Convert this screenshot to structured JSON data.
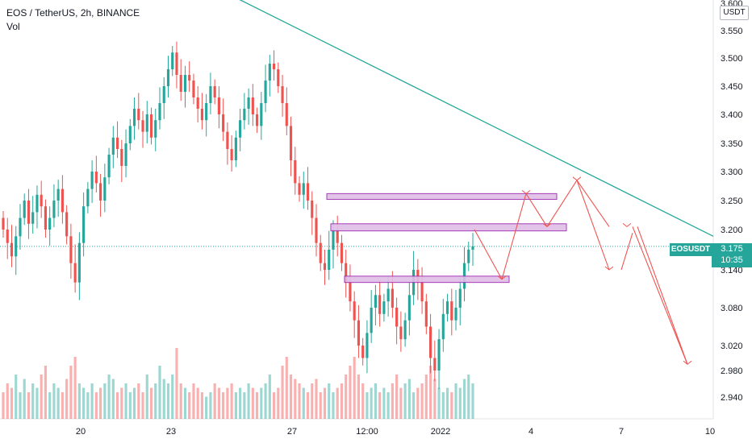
{
  "legend": {
    "title": "EOS / TetherUS, 2h, BINANCE",
    "volume_label": "Vol"
  },
  "currency_badge": "USDT",
  "price_tag": {
    "symbol": "EOSUSDT",
    "price": "3.175",
    "countdown": "10:35"
  },
  "colors": {
    "up": "#26a69a",
    "down": "#ef5350",
    "trendline": "#26a69a",
    "zone_fill": "#e1bee7",
    "zone_border": "#9c27b0",
    "projection": "#ef5350",
    "grid": "#f0f3fa"
  },
  "chart_data": {
    "type": "candlestick",
    "symbol": "EOS / TetherUS",
    "interval": "2h",
    "exchange": "BINANCE",
    "y_ticks": [
      "3.600",
      "3.550",
      "3.500",
      "3.450",
      "3.400",
      "3.350",
      "3.300",
      "3.250",
      "3.200",
      "3.140",
      "3.080",
      "3.020",
      "2.980",
      "2.940"
    ],
    "x_ticks": [
      "20",
      "23",
      "27",
      "12:00",
      "2022",
      "4",
      "7",
      "10"
    ],
    "last_price": 3.175,
    "candles_close": [
      3.2,
      3.18,
      3.16,
      3.19,
      3.22,
      3.25,
      3.21,
      3.23,
      3.26,
      3.24,
      3.2,
      3.22,
      3.25,
      3.27,
      3.23,
      3.19,
      3.15,
      3.12,
      3.18,
      3.24,
      3.27,
      3.3,
      3.28,
      3.25,
      3.29,
      3.33,
      3.36,
      3.34,
      3.31,
      3.35,
      3.38,
      3.41,
      3.39,
      3.37,
      3.4,
      3.36,
      3.39,
      3.42,
      3.45,
      3.48,
      3.51,
      3.47,
      3.44,
      3.47,
      3.46,
      3.43,
      3.41,
      3.39,
      3.42,
      3.45,
      3.43,
      3.4,
      3.37,
      3.34,
      3.32,
      3.36,
      3.39,
      3.41,
      3.43,
      3.4,
      3.38,
      3.42,
      3.46,
      3.49,
      3.48,
      3.45,
      3.42,
      3.38,
      3.32,
      3.28,
      3.26,
      3.28,
      3.25,
      3.22,
      3.18,
      3.15,
      3.14,
      3.17,
      3.2,
      3.18,
      3.15,
      3.12,
      3.09,
      3.06,
      3.02,
      3.0,
      3.04,
      3.08,
      3.1,
      3.07,
      3.09,
      3.11,
      3.08,
      3.05,
      3.03,
      3.06,
      3.1,
      3.14,
      3.12,
      3.09,
      3.05,
      3.0,
      2.98,
      3.03,
      3.07,
      3.09,
      3.06,
      3.08,
      3.11,
      3.15,
      3.17,
      3.175
    ],
    "volume_relative": [
      0.3,
      0.4,
      0.35,
      0.5,
      0.3,
      0.45,
      0.3,
      0.4,
      0.35,
      0.5,
      0.6,
      0.3,
      0.4,
      0.35,
      0.3,
      0.45,
      0.6,
      0.7,
      0.4,
      0.35,
      0.3,
      0.4,
      0.3,
      0.35,
      0.4,
      0.5,
      0.45,
      0.3,
      0.35,
      0.4,
      0.3,
      0.35,
      0.4,
      0.3,
      0.5,
      0.35,
      0.4,
      0.6,
      0.45,
      0.4,
      0.5,
      0.8,
      0.4,
      0.35,
      0.3,
      0.4,
      0.35,
      0.3,
      0.25,
      0.3,
      0.4,
      0.35,
      0.3,
      0.35,
      0.4,
      0.3,
      0.35,
      0.3,
      0.4,
      0.35,
      0.3,
      0.35,
      0.4,
      0.5,
      0.3,
      0.35,
      0.6,
      0.7,
      0.5,
      0.45,
      0.4,
      0.35,
      0.3,
      0.4,
      0.45,
      0.3,
      0.35,
      0.4,
      0.3,
      0.35,
      0.4,
      0.5,
      0.6,
      0.7,
      0.5,
      0.4,
      0.3,
      0.35,
      0.4,
      0.3,
      0.35,
      0.3,
      0.4,
      0.5,
      0.35,
      0.4,
      0.45,
      0.3,
      0.35,
      0.4,
      0.5,
      0.6,
      0.45,
      0.35,
      0.3,
      0.35,
      0.3,
      0.4,
      0.35,
      0.45,
      0.5,
      0.4
    ],
    "zones": [
      {
        "top": 3.262,
        "bottom": 3.252
      },
      {
        "top": 3.21,
        "bottom": 3.198
      },
      {
        "top": 3.13,
        "bottom": 3.12
      }
    ],
    "trendline": {
      "from_price": 3.66,
      "to_price": 3.19
    },
    "projection_path": [
      3.2,
      3.125,
      3.262,
      3.205,
      3.285,
      3.205,
      3.14,
      3.195,
      3.205,
      2.99
    ]
  }
}
